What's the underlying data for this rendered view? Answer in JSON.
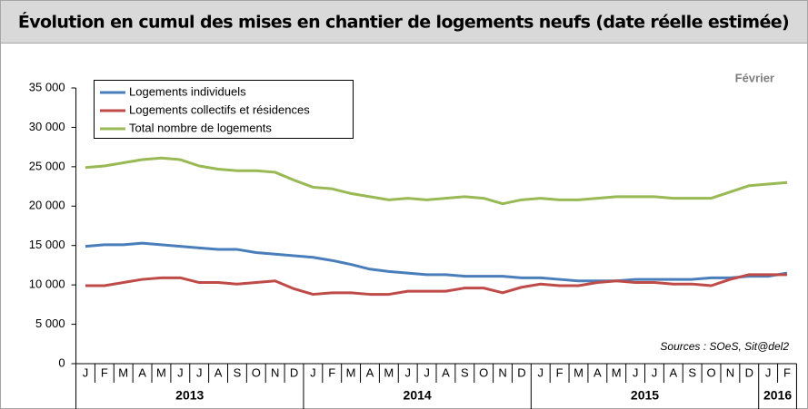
{
  "chart_data": {
    "type": "line",
    "title": "Évolution en cumul des mises en chantier de logements neufs (date réelle estimée)",
    "annotation": "Février",
    "source": "Sources : SOeS, Sit@del2",
    "categories": [
      "J",
      "F",
      "M",
      "A",
      "M",
      "J",
      "J",
      "A",
      "S",
      "O",
      "N",
      "D",
      "J",
      "F",
      "M",
      "A",
      "M",
      "J",
      "J",
      "A",
      "S",
      "O",
      "N",
      "D",
      "J",
      "F",
      "M",
      "A",
      "M",
      "J",
      "J",
      "A",
      "S",
      "O",
      "N",
      "D",
      "J",
      "F"
    ],
    "year_labels": [
      "2013",
      "2014",
      "2015",
      "2016"
    ],
    "ylim": [
      0,
      35000
    ],
    "yticks": [
      0,
      {
        "value": 5000,
        "label": "5 000"
      },
      {
        "value": 10000,
        "label": "10 000"
      },
      {
        "value": 15000,
        "label": "15 000"
      },
      {
        "value": 20000,
        "label": "20 000"
      },
      {
        "value": 25000,
        "label": "25 000"
      },
      {
        "value": 30000,
        "label": "30 000"
      },
      {
        "value": 35000,
        "label": "35 000"
      }
    ],
    "legend": "upper left",
    "series": [
      {
        "name": "Logements individuels",
        "color": "#4a7ebb",
        "values": [
          14900,
          15100,
          15100,
          15300,
          15100,
          14900,
          14700,
          14500,
          14500,
          14100,
          13900,
          13700,
          13500,
          13100,
          12600,
          12000,
          11700,
          11500,
          11300,
          11300,
          11100,
          11100,
          11100,
          10900,
          10900,
          10700,
          10500,
          10500,
          10500,
          10700,
          10700,
          10700,
          10700,
          10900,
          10900,
          11100,
          11100,
          11500
        ]
      },
      {
        "name": "Logements collectifs et résidences",
        "color": "#be4b48",
        "values": [
          9900,
          9900,
          10300,
          10700,
          10900,
          10900,
          10300,
          10300,
          10100,
          10300,
          10500,
          9500,
          8800,
          9000,
          9000,
          8800,
          8800,
          9200,
          9200,
          9200,
          9600,
          9600,
          9000,
          9700,
          10100,
          9900,
          9900,
          10300,
          10500,
          10300,
          10300,
          10100,
          10100,
          9900,
          10700,
          11300,
          11300,
          11300
        ]
      },
      {
        "name": "Total nombre de logements",
        "color": "#98b954",
        "values": [
          24900,
          25100,
          25500,
          25900,
          26100,
          25900,
          25100,
          24700,
          24500,
          24500,
          24300,
          23300,
          22400,
          22200,
          21600,
          21200,
          20800,
          21000,
          20800,
          21000,
          21200,
          21000,
          20300,
          20800,
          21000,
          20800,
          20800,
          21000,
          21200,
          21200,
          21200,
          21000,
          21000,
          21000,
          21800,
          22600,
          22800,
          23000
        ]
      }
    ]
  }
}
